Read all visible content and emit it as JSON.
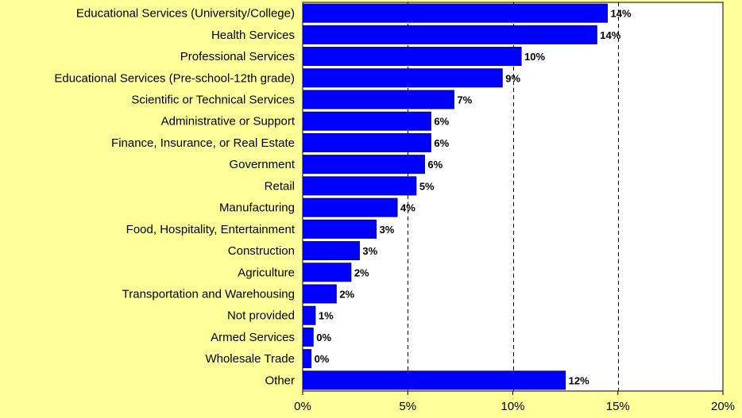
{
  "colors": {
    "background": "#ffff99",
    "bar": "#0000ff",
    "bar_border": "#000080",
    "plot_area": "#ffffff",
    "gridline": "#000000"
  },
  "chart_data": {
    "type": "bar",
    "orientation": "horizontal",
    "title": "",
    "xlabel": "",
    "ylabel": "",
    "categories": [
      "Educational Services (University/College)",
      "Health Services",
      "Professional Services",
      "Educational Services (Pre-school-12th grade)",
      "Scientific or Technical Services",
      "Administrative or Support",
      "Finance, Insurance, or Real Estate",
      "Government",
      "Retail",
      "Manufacturing",
      "Food, Hospitality, Entertainment",
      "Construction",
      "Agriculture",
      "Transportation and Warehousing",
      "Not provided",
      "Armed Services",
      "Wholesale Trade",
      "Other"
    ],
    "values": [
      14.5,
      14.0,
      10.4,
      9.5,
      7.2,
      6.1,
      6.1,
      5.8,
      5.4,
      4.5,
      3.5,
      2.7,
      2.3,
      1.6,
      0.6,
      0.5,
      0.4,
      12.5
    ],
    "value_labels": [
      "14%",
      "14%",
      "10%",
      "9%",
      "7%",
      "6%",
      "6%",
      "6%",
      "5%",
      "4%",
      "3%",
      "3%",
      "2%",
      "2%",
      "1%",
      "0%",
      "0%",
      "12%"
    ],
    "xlim": [
      0,
      20
    ],
    "x_ticks": [
      0,
      5,
      10,
      15,
      20
    ],
    "x_tick_labels": [
      "0%",
      "5%",
      "10%",
      "15%",
      "20%"
    ],
    "grid": "vertical dashed",
    "legend": "none"
  }
}
